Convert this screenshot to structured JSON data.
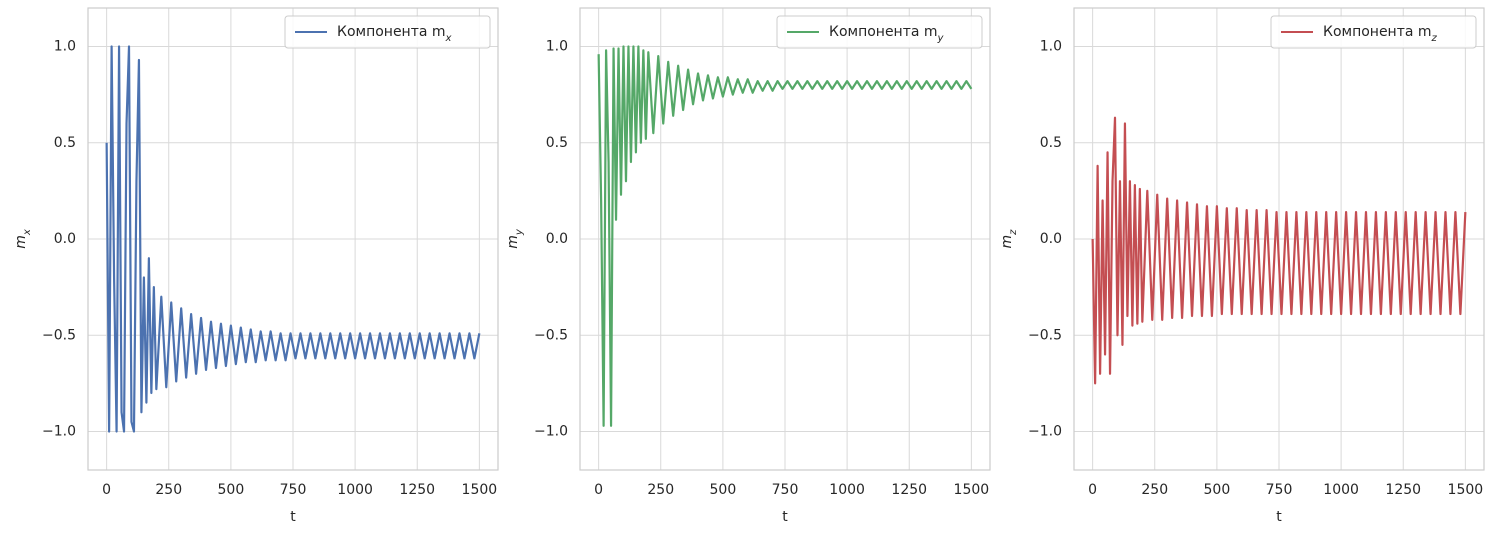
{
  "chart_data": [
    {
      "type": "line",
      "xlabel": "t",
      "ylabel": "m_x",
      "xlim": [
        -75,
        1575
      ],
      "ylim": [
        -1.2,
        1.2
      ],
      "xticks": [
        0,
        250,
        500,
        750,
        1000,
        1250,
        1500
      ],
      "yticks": [
        {
          "value": -1,
          "label": "−1.0"
        },
        {
          "value": -0.5,
          "label": "−0.5"
        },
        {
          "value": 0,
          "label": "0.0"
        },
        0.5,
        {
          "value": 1,
          "label": "1.0"
        }
      ],
      "grid": true,
      "legend": "upper right",
      "x": [
        0,
        10,
        20,
        30,
        40,
        50,
        60,
        70,
        80,
        90,
        100,
        110,
        120,
        130,
        140,
        150,
        160,
        170,
        180,
        190,
        200,
        220,
        240,
        260,
        280,
        300,
        320,
        340,
        360,
        380,
        400,
        420,
        440,
        460,
        480,
        500,
        520,
        540,
        560,
        580,
        600,
        620,
        640,
        660,
        680,
        700,
        720,
        740,
        760,
        780,
        800,
        820,
        840,
        860,
        880,
        900,
        920,
        940,
        960,
        980,
        1000,
        1020,
        1040,
        1060,
        1080,
        1100,
        1120,
        1140,
        1160,
        1180,
        1200,
        1220,
        1240,
        1260,
        1280,
        1300,
        1320,
        1340,
        1360,
        1380,
        1400,
        1420,
        1440,
        1460,
        1480,
        1500
      ],
      "series": [
        {
          "name": "Компонента m_x",
          "color": "#4c72b0",
          "values": [
            0.5,
            -1.0,
            1.0,
            -0.2,
            -1.0,
            1.0,
            -0.9,
            -1.0,
            0.6,
            1.0,
            -0.95,
            -1.0,
            0.3,
            0.93,
            -0.9,
            -0.2,
            -0.85,
            -0.1,
            -0.8,
            -0.25,
            -0.78,
            -0.3,
            -0.77,
            -0.33,
            -0.74,
            -0.36,
            -0.72,
            -0.39,
            -0.7,
            -0.41,
            -0.68,
            -0.43,
            -0.67,
            -0.44,
            -0.66,
            -0.45,
            -0.65,
            -0.46,
            -0.64,
            -0.47,
            -0.64,
            -0.48,
            -0.63,
            -0.48,
            -0.63,
            -0.49,
            -0.63,
            -0.49,
            -0.62,
            -0.49,
            -0.62,
            -0.49,
            -0.62,
            -0.49,
            -0.62,
            -0.49,
            -0.62,
            -0.49,
            -0.62,
            -0.49,
            -0.62,
            -0.49,
            -0.62,
            -0.49,
            -0.62,
            -0.49,
            -0.62,
            -0.49,
            -0.62,
            -0.49,
            -0.62,
            -0.49,
            -0.62,
            -0.49,
            -0.62,
            -0.49,
            -0.62,
            -0.49,
            -0.62,
            -0.49,
            -0.62,
            -0.49,
            -0.62,
            -0.49,
            -0.62,
            -0.49
          ]
        }
      ]
    },
    {
      "type": "line",
      "xlabel": "t",
      "ylabel": "m_y",
      "xlim": [
        -75,
        1575
      ],
      "ylim": [
        -1.2,
        1.2
      ],
      "xticks": [
        0,
        250,
        500,
        750,
        1000,
        1250,
        1500
      ],
      "yticks": [
        {
          "value": -1,
          "label": "−1.0"
        },
        {
          "value": -0.5,
          "label": "−0.5"
        },
        {
          "value": 0,
          "label": "0.0"
        },
        0.5,
        {
          "value": 1,
          "label": "1.0"
        }
      ],
      "grid": true,
      "legend": "upper right",
      "x": [
        0,
        10,
        20,
        30,
        40,
        50,
        60,
        70,
        80,
        90,
        100,
        110,
        120,
        130,
        140,
        150,
        160,
        170,
        180,
        190,
        200,
        220,
        240,
        260,
        280,
        300,
        320,
        340,
        360,
        380,
        400,
        420,
        440,
        460,
        480,
        500,
        520,
        540,
        560,
        580,
        600,
        620,
        640,
        660,
        680,
        700,
        720,
        740,
        760,
        780,
        800,
        820,
        840,
        860,
        880,
        900,
        920,
        940,
        960,
        980,
        1000,
        1020,
        1040,
        1060,
        1080,
        1100,
        1120,
        1140,
        1160,
        1180,
        1200,
        1220,
        1240,
        1260,
        1280,
        1300,
        1320,
        1340,
        1360,
        1380,
        1400,
        1420,
        1440,
        1460,
        1480,
        1500
      ],
      "series": [
        {
          "name": "Компонента m_y",
          "color": "#55a868",
          "values": [
            0.96,
            0.2,
            -0.97,
            0.98,
            0.4,
            -0.97,
            0.99,
            0.1,
            0.99,
            0.23,
            1.0,
            0.3,
            1.0,
            0.4,
            1.0,
            0.45,
            1.0,
            0.5,
            0.98,
            0.52,
            0.97,
            0.55,
            0.95,
            0.6,
            0.92,
            0.64,
            0.9,
            0.67,
            0.88,
            0.7,
            0.86,
            0.72,
            0.85,
            0.73,
            0.84,
            0.74,
            0.84,
            0.75,
            0.83,
            0.76,
            0.83,
            0.76,
            0.82,
            0.77,
            0.82,
            0.77,
            0.82,
            0.78,
            0.82,
            0.78,
            0.82,
            0.78,
            0.82,
            0.78,
            0.82,
            0.78,
            0.82,
            0.78,
            0.82,
            0.78,
            0.82,
            0.78,
            0.82,
            0.78,
            0.82,
            0.78,
            0.82,
            0.78,
            0.82,
            0.78,
            0.82,
            0.78,
            0.82,
            0.78,
            0.82,
            0.78,
            0.82,
            0.78,
            0.82,
            0.78,
            0.82,
            0.78,
            0.82,
            0.78,
            0.82,
            0.78
          ]
        }
      ]
    },
    {
      "type": "line",
      "xlabel": "t",
      "ylabel": "m_z",
      "xlim": [
        -75,
        1575
      ],
      "ylim": [
        -1.2,
        1.2
      ],
      "xticks": [
        0,
        250,
        500,
        750,
        1000,
        1250,
        1500
      ],
      "yticks": [
        {
          "value": -1,
          "label": "−1.0"
        },
        {
          "value": -0.5,
          "label": "−0.5"
        },
        {
          "value": 0,
          "label": "0.0"
        },
        0.5,
        {
          "value": 1,
          "label": "1.0"
        }
      ],
      "grid": true,
      "legend": "upper right",
      "x": [
        0,
        10,
        20,
        30,
        40,
        50,
        60,
        70,
        80,
        90,
        100,
        110,
        120,
        130,
        140,
        150,
        160,
        170,
        180,
        190,
        200,
        220,
        240,
        260,
        280,
        300,
        320,
        340,
        360,
        380,
        400,
        420,
        440,
        460,
        480,
        500,
        520,
        540,
        560,
        580,
        600,
        620,
        640,
        660,
        680,
        700,
        720,
        740,
        760,
        780,
        800,
        820,
        840,
        860,
        880,
        900,
        920,
        940,
        960,
        980,
        1000,
        1020,
        1040,
        1060,
        1080,
        1100,
        1120,
        1140,
        1160,
        1180,
        1200,
        1220,
        1240,
        1260,
        1280,
        1300,
        1320,
        1340,
        1360,
        1380,
        1400,
        1420,
        1440,
        1460,
        1480,
        1500
      ],
      "series": [
        {
          "name": "Компонента m_z",
          "color": "#c44e52",
          "values": [
            0.0,
            -0.75,
            0.38,
            -0.7,
            0.2,
            -0.6,
            0.45,
            -0.7,
            0.3,
            0.63,
            -0.5,
            0.3,
            -0.55,
            0.6,
            -0.4,
            0.3,
            -0.45,
            0.28,
            -0.44,
            0.26,
            -0.43,
            0.25,
            -0.42,
            0.23,
            -0.42,
            0.21,
            -0.41,
            0.2,
            -0.41,
            0.19,
            -0.4,
            0.18,
            -0.4,
            0.17,
            -0.4,
            0.17,
            -0.39,
            0.16,
            -0.39,
            0.16,
            -0.39,
            0.15,
            -0.39,
            0.15,
            -0.39,
            0.15,
            -0.39,
            0.14,
            -0.39,
            0.14,
            -0.39,
            0.14,
            -0.39,
            0.14,
            -0.39,
            0.14,
            -0.39,
            0.14,
            -0.39,
            0.14,
            -0.39,
            0.14,
            -0.39,
            0.14,
            -0.39,
            0.14,
            -0.39,
            0.14,
            -0.39,
            0.14,
            -0.39,
            0.14,
            -0.39,
            0.14,
            -0.39,
            0.14,
            -0.39,
            0.14,
            -0.39,
            0.14,
            -0.39,
            0.14,
            -0.39,
            0.14,
            -0.39,
            0.14
          ]
        }
      ]
    }
  ]
}
